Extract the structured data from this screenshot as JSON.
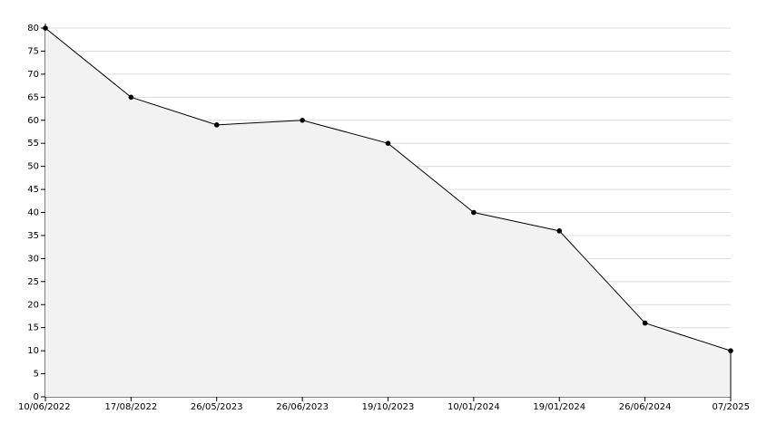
{
  "chart_data": {
    "type": "area",
    "categories": [
      "10/06/2022",
      "17/08/2022",
      "26/05/2023",
      "26/06/2023",
      "19/10/2023",
      "10/01/2024",
      "19/01/2024",
      "26/06/2024",
      "07/2025"
    ],
    "values": [
      80,
      65,
      59,
      60,
      55,
      40,
      36,
      16,
      10
    ],
    "color": "#000000",
    "fill": "#f2f2f2",
    "ylim": [
      0,
      80
    ],
    "yticks": [
      0,
      5,
      10,
      15,
      20,
      25,
      30,
      35,
      40,
      45,
      50,
      55,
      60,
      65,
      70,
      75,
      80
    ],
    "grid": true
  }
}
